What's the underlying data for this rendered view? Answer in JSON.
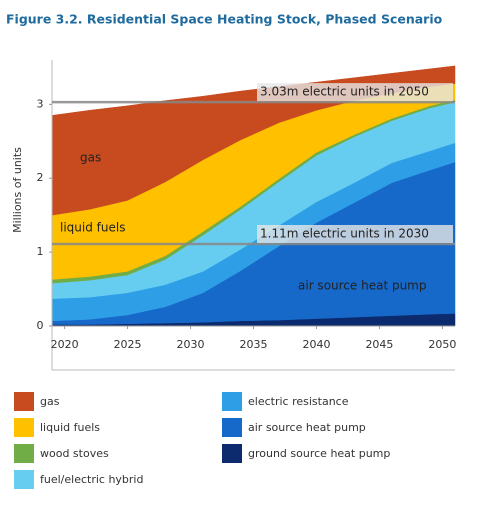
{
  "chart_data": {
    "type": "stacked-area",
    "title": "Figure 3.2. Residential Space Heating Stock, Phased Scenario",
    "y_label": "Millions of units",
    "x": [
      2019,
      2022,
      2025,
      2028,
      2031,
      2034,
      2037,
      2040,
      2043,
      2046,
      2049,
      2051
    ],
    "xlim": [
      2019,
      2051
    ],
    "xticks": [
      2020,
      2025,
      2030,
      2035,
      2040,
      2045,
      2050
    ],
    "ylim": [
      0,
      3.6
    ],
    "yticks": [
      0,
      1,
      2,
      3
    ],
    "series": [
      {
        "name": "ground source heat pump",
        "color": "#0c2b6e",
        "values": [
          0.02,
          0.02,
          0.03,
          0.04,
          0.05,
          0.07,
          0.08,
          0.1,
          0.12,
          0.14,
          0.16,
          0.17
        ]
      },
      {
        "name": "air source heat pump",
        "color": "#1668c9",
        "values": [
          0.05,
          0.07,
          0.12,
          0.22,
          0.4,
          0.68,
          1.0,
          1.3,
          1.55,
          1.8,
          1.95,
          2.05
        ]
      },
      {
        "name": "electric resistance",
        "color": "#2e9fe6",
        "values": [
          0.3,
          0.3,
          0.3,
          0.3,
          0.29,
          0.29,
          0.28,
          0.28,
          0.27,
          0.27,
          0.26,
          0.26
        ]
      },
      {
        "name": "fuel/electric hybrid",
        "color": "#66cdf0",
        "values": [
          0.21,
          0.23,
          0.24,
          0.34,
          0.49,
          0.54,
          0.59,
          0.63,
          0.62,
          0.57,
          0.58,
          0.55
        ]
      },
      {
        "name": "wood stoves",
        "color": "#70ad47",
        "values": [
          0.05,
          0.05,
          0.05,
          0.05,
          0.05,
          0.04,
          0.04,
          0.04,
          0.03,
          0.03,
          0.03,
          0.03
        ]
      },
      {
        "name": "liquid fuels",
        "color": "#ffc000",
        "values": [
          0.87,
          0.91,
          0.96,
          1.0,
          0.97,
          0.9,
          0.76,
          0.57,
          0.46,
          0.34,
          0.26,
          0.22
        ]
      },
      {
        "name": "gas",
        "color": "#c84b1f",
        "values": [
          1.35,
          1.34,
          1.28,
          1.1,
          0.86,
          0.66,
          0.49,
          0.38,
          0.31,
          0.27,
          0.24,
          0.24
        ]
      }
    ],
    "annotations": [
      {
        "value": 3.03,
        "text": "3.03m electric units in 2050"
      },
      {
        "value": 1.11,
        "text": "1.11m electric units in 2030"
      }
    ]
  }
}
